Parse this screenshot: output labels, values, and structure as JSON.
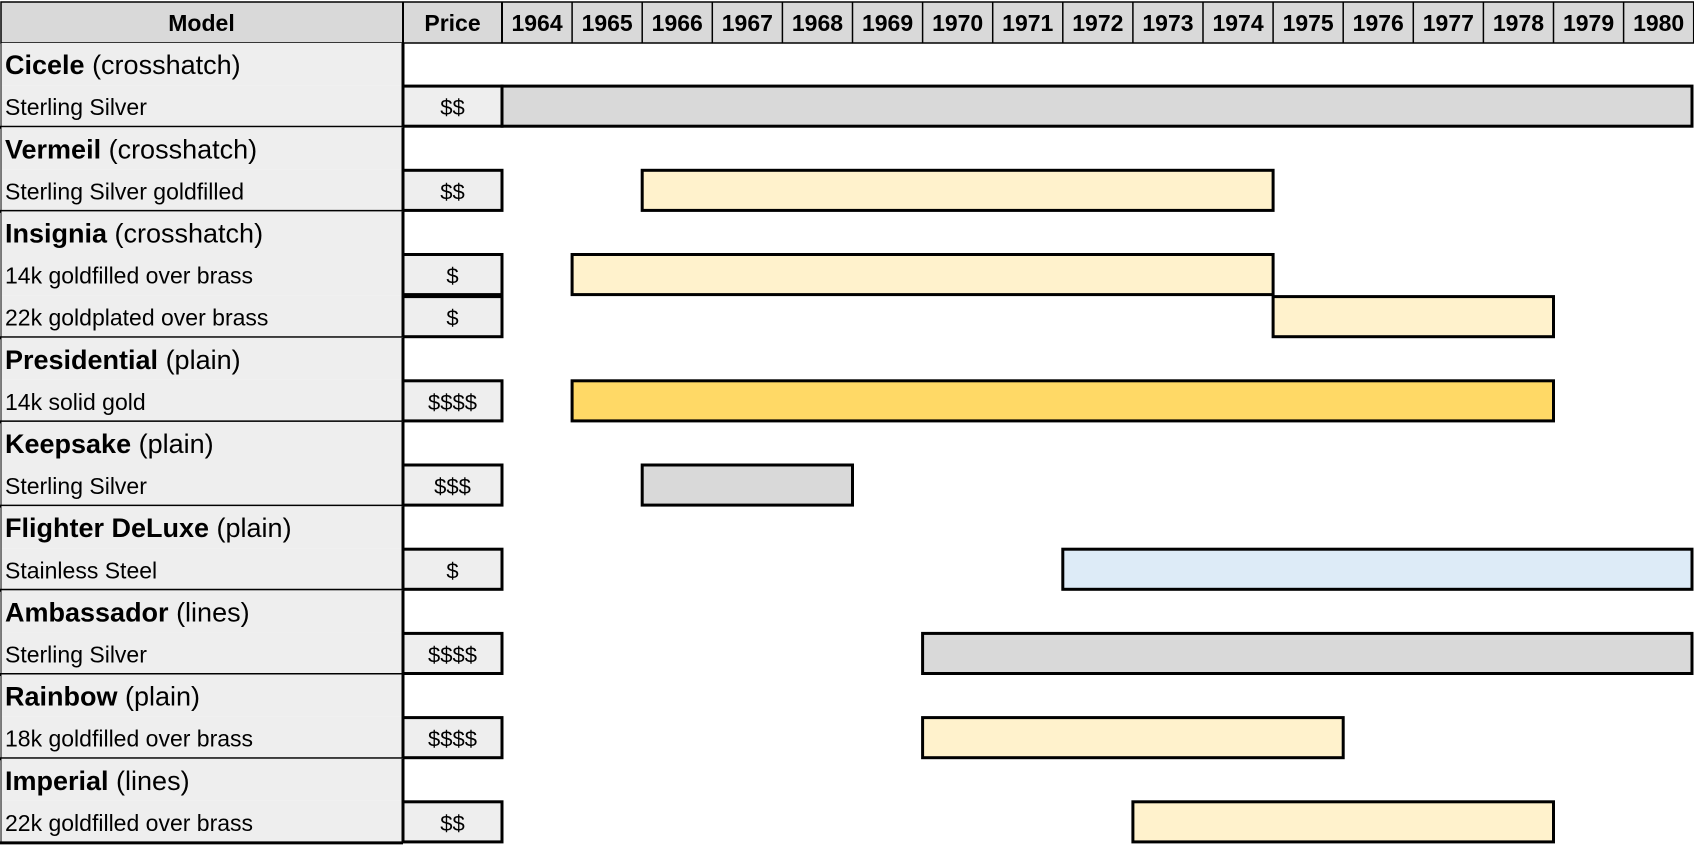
{
  "header": {
    "model": "Model",
    "price": "Price"
  },
  "colors": {
    "silver": "#d9d9d9",
    "gold_fill": "#fff2cc",
    "solid_gold": "#ffd966",
    "steel": "#ddebf7",
    "label_bg": "#eeeeee",
    "header_bg": "#d9d9d9"
  },
  "chart_data": {
    "type": "gantt",
    "years": [
      1964,
      1965,
      1966,
      1967,
      1968,
      1969,
      1970,
      1971,
      1972,
      1973,
      1974,
      1975,
      1976,
      1977,
      1978,
      1979,
      1980
    ],
    "groups": [
      {
        "name": "Cicele",
        "suffix": " (crosshatch)",
        "items": [
          {
            "material": "Sterling Silver",
            "price": "$$",
            "start": 1964,
            "end": 1980,
            "color": "silver"
          }
        ]
      },
      {
        "name": "Vermeil",
        "suffix": " (crosshatch)",
        "items": [
          {
            "material": "Sterling Silver goldfilled",
            "price": "$$",
            "start": 1966,
            "end": 1974,
            "color": "gold_fill"
          }
        ]
      },
      {
        "name": "Insignia",
        "suffix": " (crosshatch)",
        "items": [
          {
            "material": "14k goldfilled over brass",
            "price": "$",
            "start": 1965,
            "end": 1974,
            "color": "gold_fill"
          },
          {
            "material": "22k goldplated over brass",
            "price": "$",
            "start": 1975,
            "end": 1978,
            "color": "gold_fill"
          }
        ]
      },
      {
        "name": "Presidential",
        "suffix": " (plain)",
        "items": [
          {
            "material": "14k solid gold",
            "price": "$$$$",
            "start": 1965,
            "end": 1978,
            "color": "solid_gold"
          }
        ]
      },
      {
        "name": "Keepsake",
        "suffix": " (plain)",
        "items": [
          {
            "material": "Sterling Silver",
            "price": "$$$",
            "start": 1966,
            "end": 1968,
            "color": "silver"
          }
        ]
      },
      {
        "name": "Flighter DeLuxe",
        "suffix": " (plain)",
        "items": [
          {
            "material": "Stainless Steel",
            "price": "$",
            "start": 1972,
            "end": 1980,
            "color": "steel"
          }
        ]
      },
      {
        "name": "Ambassador",
        "suffix": " (lines)",
        "items": [
          {
            "material": "Sterling Silver",
            "price": "$$$$",
            "start": 1970,
            "end": 1980,
            "color": "silver"
          }
        ]
      },
      {
        "name": "Rainbow",
        "suffix": " (plain)",
        "items": [
          {
            "material": "18k goldfilled over brass",
            "price": "$$$$",
            "start": 1970,
            "end": 1975,
            "color": "gold_fill"
          }
        ]
      },
      {
        "name": "Imperial",
        "suffix": " (lines)",
        "items": [
          {
            "material": "22k goldfilled over brass",
            "price": "$$",
            "start": 1973,
            "end": 1978,
            "color": "gold_fill"
          }
        ]
      }
    ]
  }
}
